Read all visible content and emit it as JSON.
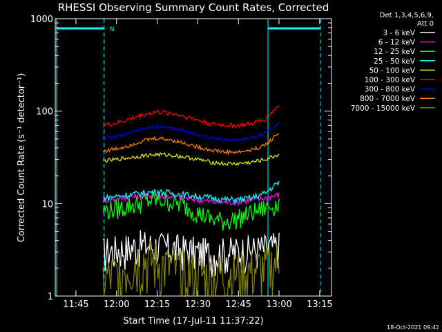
{
  "chart_data": {
    "type": "line",
    "title": "RHESSI Observing Summary Count Rates, Corrected",
    "xlabel": "Start Time (17-Jul-11 11:37:22)",
    "ylabel": "Corrected Count Rate (s⁻¹ detector⁻¹)",
    "ylog": true,
    "ylim": [
      1,
      1000
    ],
    "xlim_minutes_after_start": [
      0,
      102
    ],
    "x_ticks": [
      "11:45",
      "12:00",
      "12:15",
      "12:30",
      "12:45",
      "13:00",
      "13:15"
    ],
    "y_ticks": [
      "1",
      "10",
      "100",
      "1000"
    ],
    "legend_header": [
      "Det 1,3,4,5,6,9,",
      "Att 0"
    ],
    "legend_position": "top-right",
    "footer": "18-Oct-2021 09:42",
    "flag_label": "N",
    "x": [
      "11:55",
      "12:00",
      "12:05",
      "12:10",
      "12:15",
      "12:20",
      "12:25",
      "12:30",
      "12:35",
      "12:40",
      "12:45",
      "12:50",
      "12:55",
      "13:00"
    ],
    "series": [
      {
        "name": "3 - 6 keV",
        "color": "#ffffff",
        "values": [
          3,
          3.2,
          3.4,
          3.6,
          3.5,
          3.3,
          3.2,
          3.0,
          2.9,
          3.0,
          3.1,
          3.2,
          3.3,
          3.5
        ]
      },
      {
        "name": "6 - 12 keV",
        "color": "#ff00ff",
        "values": [
          11,
          11.2,
          11.8,
          12.2,
          12.3,
          12.0,
          11.5,
          11.0,
          10.5,
          10.3,
          10.5,
          11.0,
          11.5,
          12.5
        ]
      },
      {
        "name": "12 - 25 keV",
        "color": "#00ff00",
        "values": [
          8.5,
          8.8,
          9.5,
          10.5,
          11.0,
          10.5,
          9.5,
          8.0,
          6.8,
          6.5,
          7.0,
          8.0,
          9.0,
          10.0
        ]
      },
      {
        "name": "25 - 50 keV",
        "color": "#00ffff",
        "values": [
          11.5,
          12,
          12.5,
          13,
          13.5,
          13,
          12.5,
          12,
          11.5,
          11,
          11,
          11.5,
          13,
          17
        ]
      },
      {
        "name": "50 - 100 keV",
        "color": "#e6e600",
        "values": [
          29,
          30,
          31.5,
          33,
          34,
          33.5,
          32,
          30,
          28,
          27,
          27,
          28,
          30,
          34
        ]
      },
      {
        "name": "100 - 300 keV",
        "color": "#ff0000",
        "values": [
          70,
          74,
          82,
          92,
          98,
          95,
          88,
          80,
          73,
          70,
          70,
          73,
          82,
          115
        ]
      },
      {
        "name": "300 - 800 keV",
        "color": "#0000ff",
        "values": [
          50,
          53,
          58,
          64,
          68,
          66,
          61,
          56,
          51,
          49,
          49,
          51,
          58,
          76
        ]
      },
      {
        "name": "800 - 7000 keV",
        "color": "#ff8000",
        "values": [
          37,
          39,
          43,
          48,
          51,
          49,
          45,
          41,
          38,
          36,
          36,
          38,
          43,
          58
        ]
      },
      {
        "name": "7000 - 15000 keV",
        "color": "#808000",
        "values": [
          1.5,
          1.7,
          2.2,
          2.5,
          2.3,
          2.0,
          1.8,
          1.7,
          1.6,
          1.7,
          1.8,
          1.9,
          2.0,
          2.4
        ]
      }
    ]
  }
}
